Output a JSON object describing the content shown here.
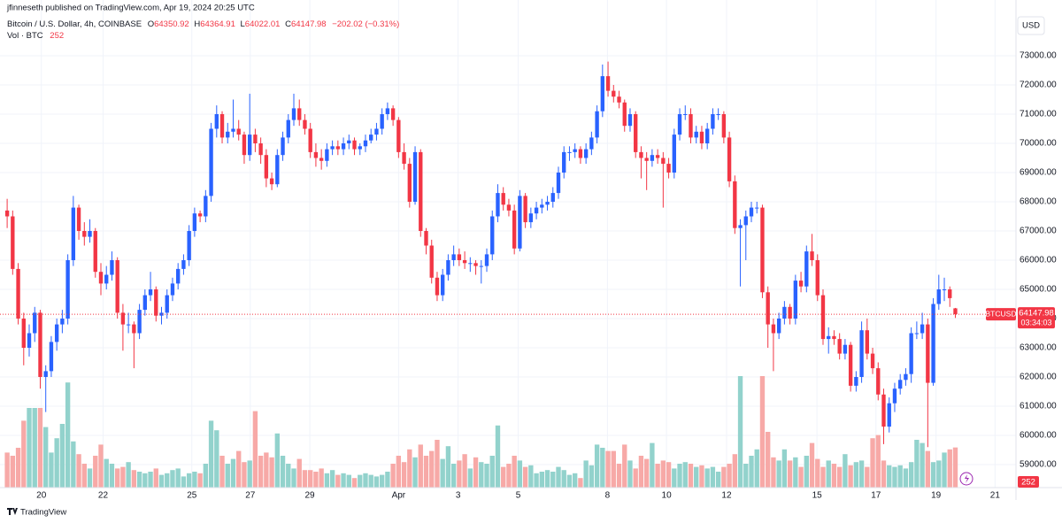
{
  "published": "jfinneseth published on TradingView.com, Apr 19, 2024 20:25 UTC",
  "footer_logo": "TradingView",
  "currency_button": "USD",
  "chart_data": {
    "type": "candlestick",
    "symbol_title": "Bitcoin / U.S. Dollar, 4h, COINBASE",
    "ohlc_prefixes": [
      "O",
      "H",
      "L",
      "C"
    ],
    "change_label": "−202.02 (−0.31%)",
    "volume_title": "Vol · BTC",
    "ticker": "BTCUSD",
    "countdown": "03:34:03",
    "up_color": "#2962ff",
    "down_color": "#f23645",
    "volume_up_color": "#92d2cc",
    "volume_down_color": "#f7a9a7",
    "grid": true,
    "xlim": [
      -1.3,
      183
    ],
    "ylim": [
      58212,
      74909
    ],
    "yticks": [
      {
        "value": 59000,
        "label": "59000.00"
      },
      {
        "value": 60000,
        "label": "60000.00"
      },
      {
        "value": 61000,
        "label": "61000.00"
      },
      {
        "value": 62000,
        "label": "62000.00"
      },
      {
        "value": 63000,
        "label": "63000.00"
      },
      {
        "value": 64000,
        "label": "64000.00"
      },
      {
        "value": 65000,
        "label": "65000.00"
      },
      {
        "value": 66000,
        "label": "66000.00"
      },
      {
        "value": 67000,
        "label": "67000.00"
      },
      {
        "value": 68000,
        "label": "68000.00"
      },
      {
        "value": 69000,
        "label": "69000.00"
      },
      {
        "value": 70000,
        "label": "70000.00"
      },
      {
        "value": 71000,
        "label": "71000.00"
      },
      {
        "value": 72000,
        "label": "72000.00"
      },
      {
        "value": 73000,
        "label": "73000.00"
      }
    ],
    "xticks": [
      {
        "value": 6.2,
        "label": "20"
      },
      {
        "value": 17.4,
        "label": "22"
      },
      {
        "value": 33.5,
        "label": "25"
      },
      {
        "value": 44.1,
        "label": "27"
      },
      {
        "value": 54.9,
        "label": "29"
      },
      {
        "value": 71,
        "label": "Apr"
      },
      {
        "value": 81.8,
        "label": "3"
      },
      {
        "value": 92.7,
        "label": "5"
      },
      {
        "value": 108.9,
        "label": "8"
      },
      {
        "value": 119.6,
        "label": "10"
      },
      {
        "value": 130.5,
        "label": "12"
      },
      {
        "value": 146.9,
        "label": "15"
      },
      {
        "value": 157.6,
        "label": "17"
      },
      {
        "value": 168.5,
        "label": "19"
      },
      {
        "value": 179.2,
        "label": "21"
      }
    ],
    "candles": [
      [
        67700,
        68100,
        67100,
        67500
      ],
      [
        67500,
        67700,
        65500,
        65700
      ],
      [
        65700,
        65900,
        63800,
        64000
      ],
      [
        64000,
        64200,
        62400,
        63000
      ],
      [
        63000,
        63800,
        62700,
        63500
      ],
      [
        63500,
        64400,
        63200,
        64200
      ],
      [
        64200,
        64300,
        61600,
        62000
      ],
      [
        62000,
        62400,
        60800,
        62200
      ],
      [
        62200,
        63400,
        62000,
        63200
      ],
      [
        63200,
        64000,
        62900,
        63800
      ],
      [
        63800,
        64300,
        63500,
        64000
      ],
      [
        64000,
        66200,
        63800,
        66000
      ],
      [
        66000,
        68200,
        65800,
        67800
      ],
      [
        67800,
        67900,
        66700,
        67000
      ],
      [
        67000,
        67300,
        66500,
        66800
      ],
      [
        66800,
        67400,
        66600,
        67000
      ],
      [
        67000,
        67100,
        65400,
        65600
      ],
      [
        65600,
        65900,
        64800,
        65200
      ],
      [
        65200,
        65800,
        65000,
        65500
      ],
      [
        65500,
        66300,
        65300,
        66000
      ],
      [
        66000,
        66100,
        64000,
        64200
      ],
      [
        64200,
        64500,
        62900,
        63800
      ],
      [
        63800,
        64200,
        63500,
        63800
      ],
      [
        63800,
        63900,
        62300,
        63500
      ],
      [
        63500,
        64500,
        63300,
        64300
      ],
      [
        64300,
        65000,
        64100,
        64800
      ],
      [
        64800,
        65600,
        64600,
        65000
      ],
      [
        65000,
        65100,
        63900,
        64100
      ],
      [
        64100,
        64400,
        63800,
        64200
      ],
      [
        64200,
        65000,
        64000,
        64800
      ],
      [
        64800,
        65400,
        64600,
        65200
      ],
      [
        65200,
        65900,
        65000,
        65700
      ],
      [
        65700,
        66200,
        65500,
        66000
      ],
      [
        66000,
        67200,
        65800,
        67000
      ],
      [
        67000,
        67800,
        66800,
        67600
      ],
      [
        67600,
        67700,
        67300,
        67500
      ],
      [
        67500,
        68400,
        67300,
        68200
      ],
      [
        68200,
        70700,
        68000,
        70500
      ],
      [
        70500,
        71300,
        70200,
        71000
      ],
      [
        71000,
        71100,
        70000,
        70200
      ],
      [
        70200,
        70700,
        70000,
        70400
      ],
      [
        70400,
        71500,
        70200,
        70500
      ],
      [
        70500,
        70800,
        70100,
        70300
      ],
      [
        70300,
        70400,
        69300,
        69600
      ],
      [
        69600,
        71700,
        69400,
        70300
      ],
      [
        70300,
        70500,
        69700,
        70000
      ],
      [
        70000,
        70200,
        69300,
        69600
      ],
      [
        69600,
        69800,
        68500,
        68800
      ],
      [
        68800,
        69000,
        68400,
        68600
      ],
      [
        68600,
        69800,
        68500,
        69600
      ],
      [
        69600,
        70400,
        69400,
        70200
      ],
      [
        70200,
        71000,
        70000,
        70800
      ],
      [
        70800,
        71700,
        70600,
        71200
      ],
      [
        71200,
        71500,
        70600,
        70800
      ],
      [
        70800,
        71000,
        70300,
        70500
      ],
      [
        70500,
        70700,
        69500,
        69700
      ],
      [
        69700,
        70000,
        69200,
        69500
      ],
      [
        69500,
        69800,
        69100,
        69400
      ],
      [
        69400,
        70000,
        69200,
        69800
      ],
      [
        69800,
        70100,
        69600,
        69900
      ],
      [
        69900,
        70100,
        69600,
        69800
      ],
      [
        69800,
        70200,
        69600,
        70000
      ],
      [
        70000,
        70300,
        69800,
        70100
      ],
      [
        70100,
        70200,
        69600,
        69800
      ],
      [
        69800,
        70000,
        69600,
        69900
      ],
      [
        69900,
        70300,
        69700,
        70100
      ],
      [
        70100,
        70500,
        70000,
        70300
      ],
      [
        70300,
        70700,
        70100,
        70500
      ],
      [
        70500,
        71200,
        70300,
        71000
      ],
      [
        71000,
        71400,
        70800,
        71200
      ],
      [
        71200,
        71300,
        70600,
        70800
      ],
      [
        70800,
        70900,
        69500,
        69700
      ],
      [
        69700,
        70000,
        69100,
        69300
      ],
      [
        69300,
        69500,
        67800,
        68000
      ],
      [
        68000,
        69900,
        67900,
        69700
      ],
      [
        69700,
        69800,
        66800,
        67000
      ],
      [
        67000,
        67100,
        66200,
        66500
      ],
      [
        66500,
        66700,
        65200,
        65400
      ],
      [
        65400,
        65600,
        64600,
        64800
      ],
      [
        64800,
        65700,
        64600,
        65500
      ],
      [
        65500,
        66200,
        65300,
        66000
      ],
      [
        66000,
        66500,
        65800,
        66200
      ],
      [
        66200,
        66400,
        65800,
        66000
      ],
      [
        66000,
        66300,
        65700,
        65900
      ],
      [
        65900,
        66100,
        65600,
        65900
      ],
      [
        65900,
        66000,
        65500,
        65800
      ],
      [
        65800,
        66000,
        65200,
        65800
      ],
      [
        65800,
        66400,
        65600,
        66200
      ],
      [
        66200,
        67700,
        66000,
        67500
      ],
      [
        67500,
        68600,
        67300,
        68300
      ],
      [
        68300,
        68500,
        67700,
        67900
      ],
      [
        67900,
        68100,
        67500,
        67700
      ],
      [
        67700,
        67900,
        66200,
        66400
      ],
      [
        66400,
        68400,
        66300,
        68200
      ],
      [
        68200,
        68300,
        67100,
        67300
      ],
      [
        67300,
        67800,
        67100,
        67600
      ],
      [
        67600,
        68000,
        67400,
        67800
      ],
      [
        67800,
        68100,
        67600,
        67900
      ],
      [
        67900,
        68200,
        67700,
        68000
      ],
      [
        68000,
        68500,
        67800,
        68300
      ],
      [
        68300,
        69200,
        68100,
        69000
      ],
      [
        69000,
        69900,
        68800,
        69700
      ],
      [
        69700,
        69900,
        69400,
        69700
      ],
      [
        69700,
        70000,
        69500,
        69800
      ],
      [
        69800,
        69900,
        69300,
        69500
      ],
      [
        69500,
        70000,
        69300,
        69800
      ],
      [
        69800,
        70400,
        69600,
        70200
      ],
      [
        70200,
        71300,
        70000,
        71100
      ],
      [
        71100,
        72700,
        70900,
        72300
      ],
      [
        72300,
        72800,
        71600,
        71800
      ],
      [
        71800,
        72000,
        71400,
        71600
      ],
      [
        71600,
        71800,
        71200,
        71400
      ],
      [
        71400,
        71500,
        70400,
        70600
      ],
      [
        70600,
        71200,
        70400,
        71000
      ],
      [
        71000,
        71100,
        69500,
        69700
      ],
      [
        69700,
        69900,
        68800,
        69500
      ],
      [
        69500,
        69700,
        68400,
        69400
      ],
      [
        69400,
        69800,
        69200,
        69600
      ],
      [
        69600,
        69800,
        69300,
        69500
      ],
      [
        69500,
        69700,
        67800,
        69300
      ],
      [
        69300,
        69500,
        68800,
        69000
      ],
      [
        69000,
        70500,
        68800,
        70300
      ],
      [
        70300,
        71200,
        70100,
        71000
      ],
      [
        71000,
        71300,
        70800,
        71000
      ],
      [
        71000,
        71200,
        70000,
        70200
      ],
      [
        70200,
        70600,
        70000,
        70400
      ],
      [
        70400,
        70600,
        69800,
        70000
      ],
      [
        70000,
        70700,
        69800,
        70500
      ],
      [
        70500,
        71200,
        70300,
        71000
      ],
      [
        71000,
        71200,
        70800,
        71000
      ],
      [
        71000,
        71100,
        70000,
        70200
      ],
      [
        70200,
        70400,
        68500,
        68700
      ],
      [
        68700,
        68900,
        66900,
        67100
      ],
      [
        67100,
        67400,
        65100,
        67200
      ],
      [
        67200,
        67700,
        66000,
        67500
      ],
      [
        67500,
        68000,
        67300,
        67800
      ],
      [
        67800,
        68000,
        67600,
        67800
      ],
      [
        67800,
        67900,
        64700,
        64900
      ],
      [
        64900,
        65100,
        63000,
        63800
      ],
      [
        63800,
        64000,
        62200,
        63500
      ],
      [
        63500,
        64200,
        63300,
        64000
      ],
      [
        64000,
        64600,
        63800,
        64400
      ],
      [
        64400,
        64500,
        63800,
        64000
      ],
      [
        64000,
        65500,
        63800,
        65300
      ],
      [
        65300,
        65600,
        64900,
        65100
      ],
      [
        65100,
        66500,
        64900,
        66300
      ],
      [
        66300,
        66900,
        65800,
        66000
      ],
      [
        66000,
        66200,
        64600,
        64800
      ],
      [
        64800,
        65000,
        63100,
        63300
      ],
      [
        63300,
        63700,
        62800,
        63400
      ],
      [
        63400,
        63600,
        63100,
        63300
      ],
      [
        63300,
        63500,
        62600,
        62800
      ],
      [
        62800,
        63300,
        62600,
        63100
      ],
      [
        63100,
        63200,
        61500,
        61700
      ],
      [
        61700,
        62200,
        61500,
        62000
      ],
      [
        62000,
        63900,
        61800,
        63600
      ],
      [
        63600,
        64000,
        62600,
        62800
      ],
      [
        62800,
        63000,
        62100,
        62300
      ],
      [
        62300,
        62500,
        61200,
        61400
      ],
      [
        61400,
        61600,
        59700,
        60300
      ],
      [
        60300,
        61300,
        60100,
        61100
      ],
      [
        61100,
        61800,
        60800,
        61600
      ],
      [
        61600,
        62100,
        61400,
        61900
      ],
      [
        61900,
        62300,
        61700,
        62100
      ],
      [
        62100,
        63700,
        61800,
        63500
      ],
      [
        63500,
        63900,
        63300,
        63500
      ],
      [
        63500,
        64200,
        63300,
        63800
      ],
      [
        63800,
        64000,
        59600,
        61800
      ],
      [
        61800,
        64700,
        61700,
        64500
      ],
      [
        64500,
        65500,
        64300,
        65000
      ],
      [
        65000,
        65400,
        64600,
        65000
      ],
      [
        65000,
        65100,
        64400,
        64700
      ],
      [
        64350.92,
        64364.91,
        64022.01,
        64147.98
      ]
    ],
    "volumes": [
      220,
      200,
      250,
      420,
      500,
      500,
      500,
      380,
      220,
      310,
      400,
      660,
      290,
      210,
      150,
      120,
      200,
      270,
      180,
      150,
      120,
      130,
      160,
      110,
      100,
      90,
      100,
      120,
      80,
      90,
      110,
      120,
      70,
      90,
      100,
      90,
      150,
      420,
      360,
      200,
      150,
      180,
      230,
      160,
      170,
      480,
      200,
      220,
      190,
      340,
      200,
      150,
      120,
      180,
      110,
      110,
      100,
      120,
      90,
      110,
      80,
      90,
      80,
      60,
      80,
      90,
      80,
      70,
      80,
      100,
      150,
      200,
      160,
      240,
      190,
      270,
      200,
      230,
      300,
      180,
      260,
      150,
      170,
      210,
      120,
      190,
      160,
      150,
      200,
      390,
      130,
      150,
      200,
      170,
      130,
      140,
      90,
      100,
      110,
      100,
      130,
      110,
      80,
      90,
      60,
      170,
      140,
      270,
      250,
      230,
      230,
      150,
      270,
      170,
      120,
      200,
      180,
      280,
      150,
      170,
      160,
      120,
      150,
      160,
      150,
      130,
      140,
      120,
      130,
      100,
      130,
      150,
      210,
      700,
      150,
      200,
      240,
      700,
      350,
      190,
      170,
      240,
      170,
      190,
      130,
      200,
      280,
      180,
      130,
      170,
      150,
      130,
      210,
      140,
      160,
      170,
      130,
      310,
      330,
      170,
      140,
      130,
      140,
      120,
      160,
      300,
      280,
      230,
      160,
      170,
      220,
      240,
      252
    ]
  }
}
